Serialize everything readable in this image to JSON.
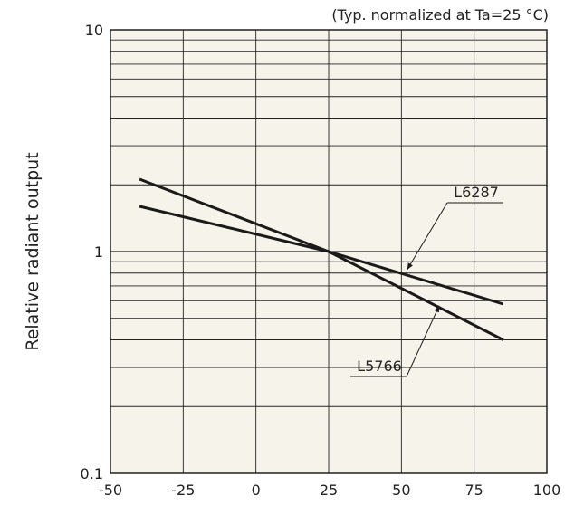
{
  "chart_data": {
    "type": "line",
    "title": "",
    "note": "(Typ. normalized at Ta=25 °C)",
    "xlabel": "",
    "ylabel": "Relative radiant output",
    "x_scale": "linear",
    "y_scale": "log",
    "xlim": [
      -50,
      100
    ],
    "ylim": [
      0.1,
      10
    ],
    "x_ticks": [
      -50,
      -25,
      0,
      25,
      50,
      75,
      100
    ],
    "x_tick_labels": [
      "-50",
      "-25",
      "0",
      "25",
      "50",
      "75",
      "100"
    ],
    "y_ticks": [
      0.1,
      1,
      10
    ],
    "y_tick_labels": [
      "0.1",
      "1",
      "10"
    ],
    "grid": true,
    "series": [
      {
        "name": "L6287",
        "x": [
          -40,
          25,
          85
        ],
        "y": [
          1.6,
          1.0,
          0.58
        ]
      },
      {
        "name": "L5766",
        "x": [
          -40,
          25,
          85
        ],
        "y": [
          2.12,
          1.0,
          0.4
        ]
      }
    ],
    "annotations": [
      {
        "text": "L6287",
        "points_to": {
          "x": 52,
          "y": 0.83
        }
      },
      {
        "text": "L5766",
        "points_to": {
          "x": 63,
          "y": 0.57
        }
      }
    ]
  },
  "style": {
    "plot_background": "#f6f4ea",
    "grid_color": "#222222",
    "line_color": "#1a1a1a",
    "text_color": "#222222"
  }
}
